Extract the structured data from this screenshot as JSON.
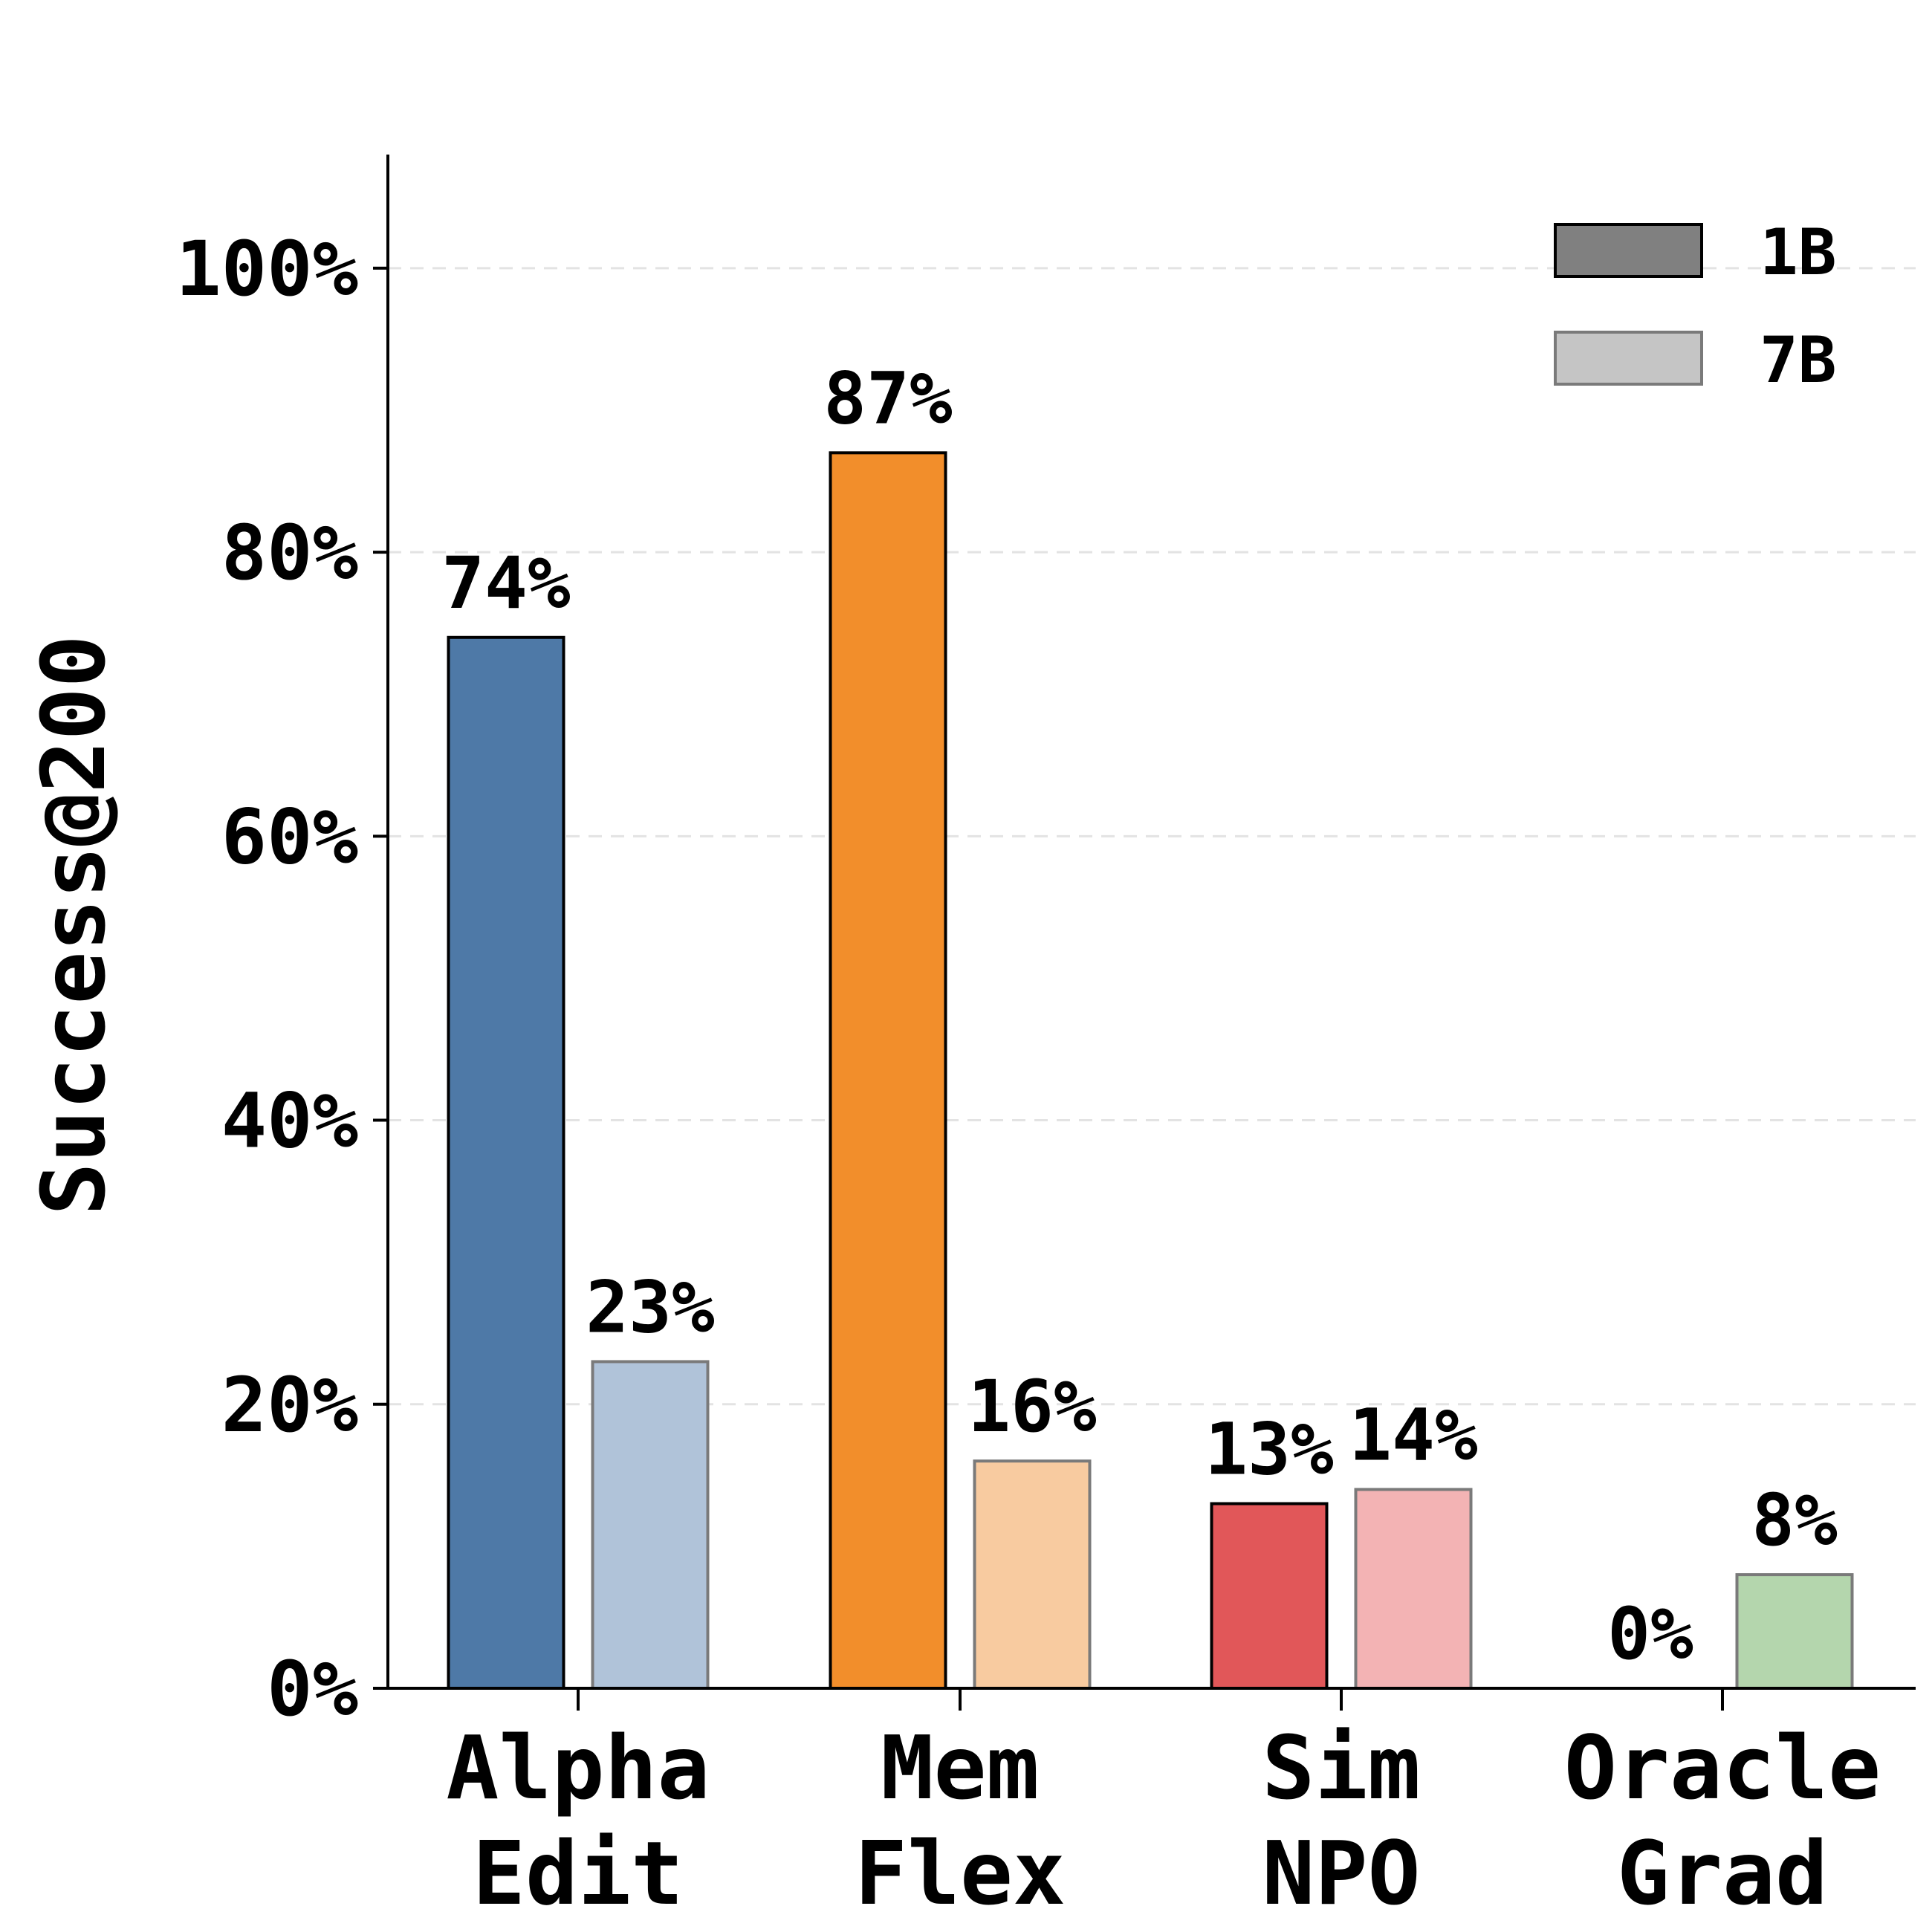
{
  "chart_data": {
    "type": "bar",
    "categories": [
      {
        "line1": "Alpha",
        "line2": "Edit"
      },
      {
        "line1": "Mem",
        "line2": "Flex"
      },
      {
        "line1": "Sim",
        "line2": "NPO"
      },
      {
        "line1": "Oracle",
        "line2": "Grad"
      }
    ],
    "series": [
      {
        "name": "1B",
        "values": [
          74,
          87,
          13,
          0
        ],
        "labels": [
          "74%",
          "87%",
          "13%",
          "0%"
        ],
        "colors": [
          "#4e79a7",
          "#f28e2b",
          "#e15759",
          "#59a14f"
        ],
        "legend_color": "#808080"
      },
      {
        "name": "7B",
        "values": [
          23,
          16,
          14,
          8
        ],
        "labels": [
          "23%",
          "16%",
          "14%",
          "8%"
        ],
        "colors": [
          "#b0c3d9",
          "#f8cba0",
          "#f3b3b4",
          "#b4d6ad"
        ],
        "legend_color": "#c5c5c5"
      }
    ],
    "ylabel": "Success@200",
    "yticks": [
      0,
      20,
      40,
      60,
      80,
      100
    ],
    "ytick_labels": [
      "0%",
      "20%",
      "40%",
      "60%",
      "80%",
      "100%"
    ],
    "ylim": [
      0,
      108
    ],
    "grid": "horizontal dashed",
    "legend_position": "top-right"
  }
}
